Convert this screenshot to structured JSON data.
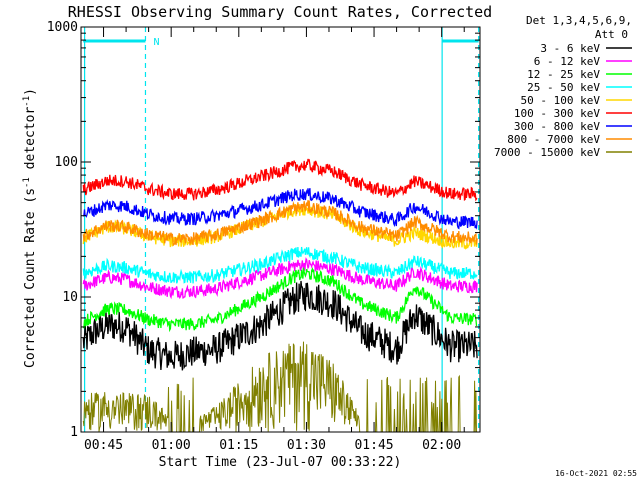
{
  "chart_data": {
    "type": "line",
    "title": "RHESSI Observing Summary Count Rates, Corrected",
    "xlabel": "Start Time (23-Jul-07 00:33:22)",
    "ylabel_main": "Corrected Count Rate (s",
    "ylabel_sup1": "-1",
    "ylabel_mid": " detector",
    "ylabel_sup2": "-1",
    "ylabel_end": ")",
    "yscale": "log",
    "ylim": [
      1,
      1000
    ],
    "xlim_minutes": [
      40.0,
      128.5
    ],
    "xlim_note": "x in minutes after 00:00 UT",
    "y_ticks": [
      {
        "value": 1,
        "label": "1"
      },
      {
        "value": 10,
        "label": "10"
      },
      {
        "value": 100,
        "label": "100"
      },
      {
        "value": 1000,
        "label": "1000"
      }
    ],
    "x_ticks": [
      {
        "value": 45,
        "label": "00:45"
      },
      {
        "value": 60,
        "label": "01:00"
      },
      {
        "value": 75,
        "label": "01:15"
      },
      {
        "value": 90,
        "label": "01:30"
      },
      {
        "value": 105,
        "label": "01:45"
      },
      {
        "value": 120,
        "label": "02:00"
      }
    ],
    "legend": {
      "header1": "Det 1,3,4,5,6,9,",
      "header2": "Att 0",
      "placement": "top-right, outside plot"
    },
    "series": [
      {
        "name": "3 - 6 keV",
        "color": "#000000",
        "values": [
          4.6,
          5.5,
          6.2,
          6.0,
          4.0,
          3.6,
          3.9,
          4.1,
          6.2,
          9.5,
          10.5,
          9.0,
          5.6,
          4.1,
          7.5,
          4.3,
          4.3
        ]
      },
      {
        "name": "6 - 12 keV",
        "color": "#ff00ff",
        "values": [
          12.0,
          13.0,
          14.0,
          13.5,
          11.8,
          11.0,
          11.0,
          11.5,
          14.5,
          17.0,
          17.5,
          16.0,
          13.5,
          12.0,
          15.5,
          12.0,
          12.0
        ]
      },
      {
        "name": "12 - 25 keV",
        "color": "#00ff00",
        "values": [
          6.5,
          7.3,
          8.2,
          8.0,
          6.8,
          6.3,
          6.3,
          6.8,
          10.0,
          14.0,
          15.0,
          13.0,
          9.0,
          7.0,
          12.0,
          7.0,
          6.8
        ]
      },
      {
        "name": "25 - 50 keV",
        "color": "#00ffff",
        "values": [
          15.0,
          16.0,
          17.0,
          16.5,
          14.8,
          14.0,
          14.0,
          14.5,
          17.5,
          21.0,
          21.5,
          19.5,
          16.5,
          15.0,
          18.5,
          15.0,
          15.0
        ]
      },
      {
        "name": "50 - 100 keV",
        "color": "#ffd700",
        "values": [
          27.0,
          30.0,
          33.0,
          32.0,
          28.0,
          26.0,
          26.0,
          28.0,
          36.0,
          44.0,
          45.0,
          40.0,
          31.0,
          26.0,
          30.0,
          25.0,
          25.0
        ]
      },
      {
        "name": "100 - 300 keV",
        "color": "#ff0000",
        "values": [
          62.0,
          67.0,
          73.0,
          72.0,
          63.0,
          58.0,
          58.0,
          62.0,
          78.0,
          92.0,
          95.0,
          85.0,
          68.0,
          58.0,
          72.0,
          58.0,
          58.0
        ]
      },
      {
        "name": "300 - 800 keV",
        "color": "#0000ff",
        "values": [
          41.0,
          44.0,
          48.0,
          47.0,
          41.0,
          38.0,
          38.0,
          40.0,
          48.0,
          57.0,
          58.0,
          53.0,
          43.0,
          37.0,
          47.0,
          36.0,
          36.0
        ]
      },
      {
        "name": "800 - 7000 keV",
        "color": "#ff8c00",
        "values": [
          28.0,
          31.0,
          34.0,
          33.0,
          29.0,
          27.0,
          27.0,
          29.0,
          37.0,
          45.0,
          47.0,
          42.0,
          33.0,
          28.0,
          36.0,
          28.0,
          27.0
        ]
      },
      {
        "name": "7000 - 15000 keV",
        "color": "#808000",
        "values": [
          1.5,
          1.5,
          1.6,
          1.5,
          1.5,
          1.0,
          1.0,
          1.2,
          2.8,
          3.6,
          3.8,
          2.6,
          1.0,
          1.0,
          1.0,
          1.0,
          1.0
        ]
      }
    ],
    "series_x_minutes": [
      40.5,
      43,
      46,
      50,
      55,
      60,
      65,
      70,
      80,
      87,
      90,
      96,
      102,
      110,
      114,
      122,
      128
    ],
    "observing_bar_upper": [
      {
        "start": 40.5,
        "end": 54.3,
        "label": "N"
      },
      {
        "start": 120.1,
        "end": 128.2,
        "label": ""
      }
    ],
    "markers": {
      "solid_vertical_minutes": [
        40.8,
        120.1
      ],
      "dashed_vertical_minutes": [
        54.3,
        128.2
      ]
    }
  },
  "footer": {
    "timestamp": "16-Oct-2021 02:55"
  },
  "colors": {
    "background": "#ffffff",
    "axes": "#000000",
    "observing_bars": "#00e5ee"
  }
}
